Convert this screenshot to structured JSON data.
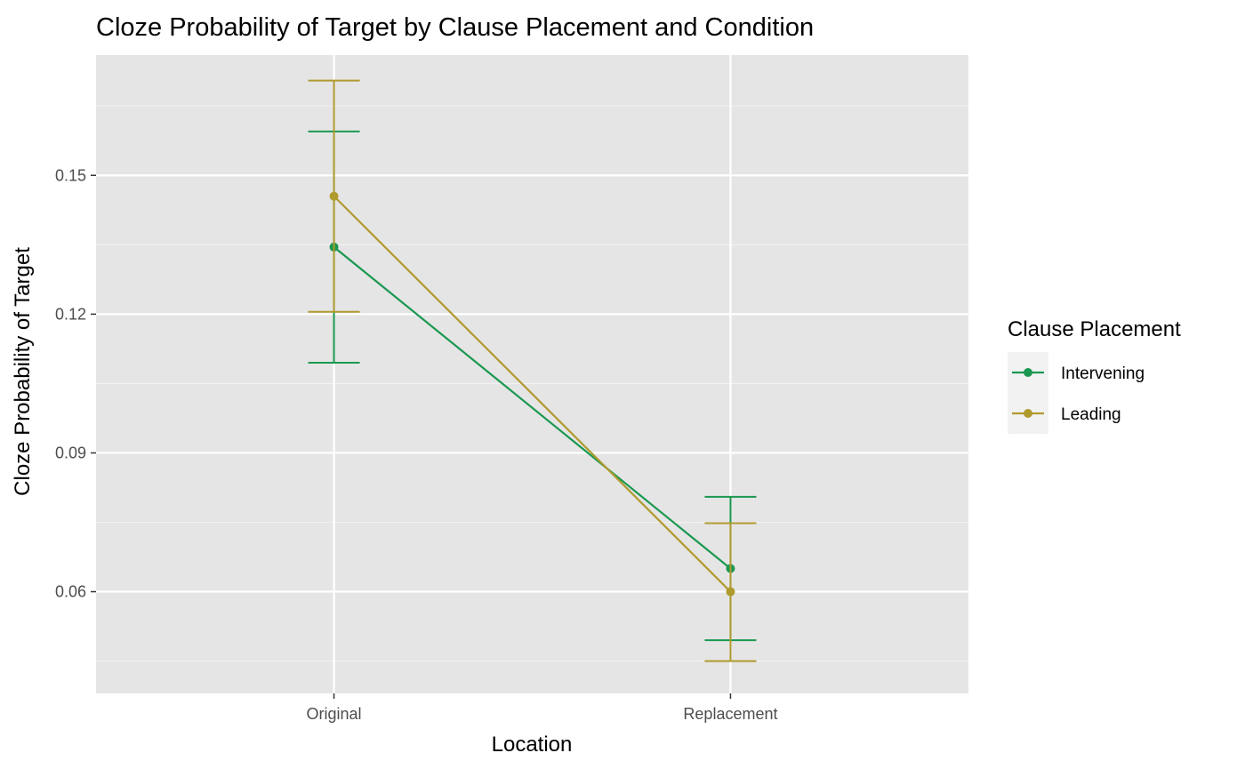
{
  "chart_data": {
    "type": "line",
    "title": "Cloze Probability of Target by Clause Placement and Condition",
    "xlabel": "Location",
    "ylabel": "Cloze Probability of Target",
    "categories": [
      "Original",
      "Replacement"
    ],
    "ylim": [
      0.038,
      0.176
    ],
    "yticks": [
      0.06,
      0.09,
      0.12,
      0.15
    ],
    "ytick_labels": [
      "0.06",
      "0.09",
      "0.12",
      "0.15"
    ],
    "grid": true,
    "legend": {
      "title": "Clause Placement",
      "position": "right"
    },
    "series": [
      {
        "name": "Intervening",
        "color": "#1a9850",
        "values": [
          0.1345,
          0.065
        ],
        "err_low": [
          0.1095,
          0.0495
        ],
        "err_high": [
          0.1595,
          0.0805
        ]
      },
      {
        "name": "Leading",
        "color": "#b09a2e",
        "values": [
          0.1455,
          0.06
        ],
        "err_low": [
          0.1205,
          0.045
        ],
        "err_high": [
          0.1705,
          0.0748
        ]
      }
    ]
  }
}
